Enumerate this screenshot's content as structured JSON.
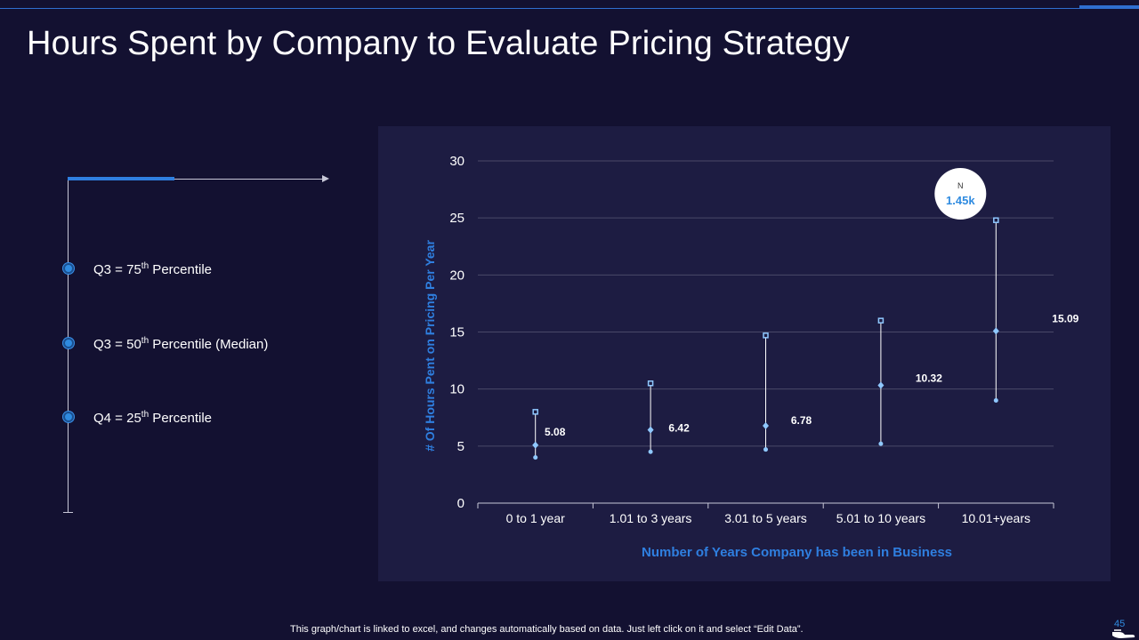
{
  "title": "Hours Spent by Company to Evaluate Pricing Strategy",
  "legend": [
    {
      "prefix": "Q3 = 75",
      "sup": "th",
      "suffix": " Percentile"
    },
    {
      "prefix": "Q3 = 50",
      "sup": "th",
      "suffix": " Percentile (Median)"
    },
    {
      "prefix": "Q4 = 25",
      "sup": "th",
      "suffix": " Percentile"
    }
  ],
  "badge": {
    "label": "N",
    "value": "1.45k"
  },
  "footnote": "This graph/chart is linked to excel,  and changes automatically based on data. Just left click on it and select “Edit Data”.",
  "page_number": "45",
  "colors": {
    "background": "#131131",
    "panel": "#1d1c42",
    "accent": "#2f7fe0",
    "marker": "#8fc8ff"
  },
  "chart_data": {
    "type": "scatter",
    "subtype": "box-range",
    "categories": [
      "0 to 1 year",
      "1.01 to 3 years",
      "3.01 to 5 years",
      "5.01 to 10 years",
      "10.01+years"
    ],
    "q75": [
      8.0,
      10.5,
      14.7,
      16.0,
      24.8
    ],
    "median": [
      5.08,
      6.42,
      6.78,
      10.32,
      15.09
    ],
    "q25": [
      4.0,
      4.5,
      4.7,
      5.2,
      9.0
    ],
    "median_labels": [
      "5.08",
      "6.42",
      "6.78",
      "10.32",
      "15.09"
    ],
    "xlabel": "Number of Years Company has been in Business",
    "ylabel": "# Of Hours Pent on Pricing Per Year",
    "ylim": [
      0,
      30
    ],
    "yticks": [
      "0",
      "5",
      "10",
      "15",
      "20",
      "25",
      "30"
    ],
    "grid": true
  }
}
